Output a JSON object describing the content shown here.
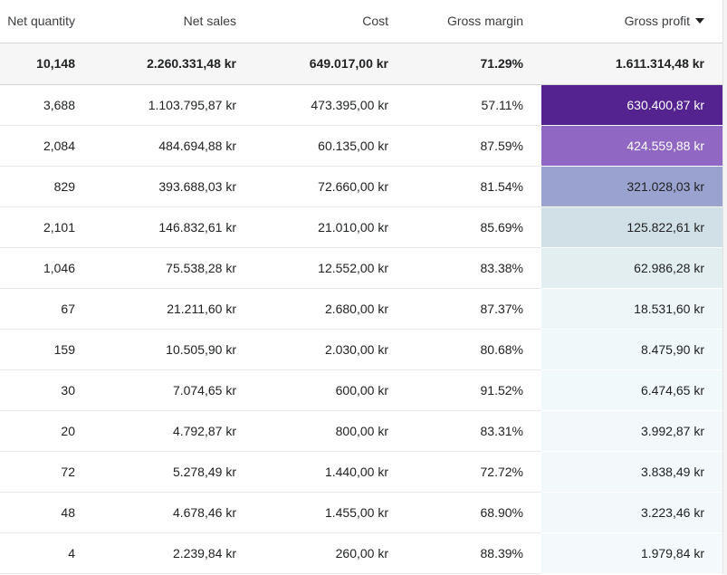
{
  "table": {
    "headers": {
      "net_quantity": "Net quantity",
      "net_sales": "Net sales",
      "cost": "Cost",
      "gross_margin": "Gross margin",
      "gross_profit": "Gross profit"
    },
    "sort_column": "Gross profit",
    "totals": {
      "net_quantity": "10,148",
      "net_sales": "2.260.331,48 kr",
      "cost": "649.017,00 kr",
      "gross_margin": "71.29%",
      "gross_profit": "1.611.314,48 kr"
    },
    "rows": [
      {
        "net_quantity": "3,688",
        "net_sales": "1.103.795,87 kr",
        "cost": "473.395,00 kr",
        "gross_margin": "57.11%",
        "gross_profit": "630.400,87 kr",
        "heat_color": "#54238f",
        "heat_text_color": "#ffffff"
      },
      {
        "net_quantity": "2,084",
        "net_sales": "484.694,88 kr",
        "cost": "60.135,00 kr",
        "gross_margin": "87.59%",
        "gross_profit": "424.559,88 kr",
        "heat_color": "#9067c3",
        "heat_text_color": "#ffffff"
      },
      {
        "net_quantity": "829",
        "net_sales": "393.688,03 kr",
        "cost": "72.660,00 kr",
        "gross_margin": "81.54%",
        "gross_profit": "321.028,03 kr",
        "heat_color": "#9aa3cf",
        "heat_text_color": "#202223"
      },
      {
        "net_quantity": "2,101",
        "net_sales": "146.832,61 kr",
        "cost": "21.010,00 kr",
        "gross_margin": "85.69%",
        "gross_profit": "125.822,61 kr",
        "heat_color": "#d1dfe6",
        "heat_text_color": "#202223"
      },
      {
        "net_quantity": "1,046",
        "net_sales": "75.538,28 kr",
        "cost": "12.552,00 kr",
        "gross_margin": "83.38%",
        "gross_profit": "62.986,28 kr",
        "heat_color": "#e3eef1",
        "heat_text_color": "#202223"
      },
      {
        "net_quantity": "67",
        "net_sales": "21.211,60 kr",
        "cost": "2.680,00 kr",
        "gross_margin": "87.37%",
        "gross_profit": "18.531,60 kr",
        "heat_color": "#eef6f8",
        "heat_text_color": "#202223"
      },
      {
        "net_quantity": "159",
        "net_sales": "10.505,90 kr",
        "cost": "2.030,00 kr",
        "gross_margin": "80.68%",
        "gross_profit": "8.475,90 kr",
        "heat_color": "#f1f8fa",
        "heat_text_color": "#202223"
      },
      {
        "net_quantity": "30",
        "net_sales": "7.074,65 kr",
        "cost": "600,00 kr",
        "gross_margin": "91.52%",
        "gross_profit": "6.474,65 kr",
        "heat_color": "#f2f9fa",
        "heat_text_color": "#202223"
      },
      {
        "net_quantity": "20",
        "net_sales": "4.792,87 kr",
        "cost": "800,00 kr",
        "gross_margin": "83.31%",
        "gross_profit": "3.992,87 kr",
        "heat_color": "#f3f9fb",
        "heat_text_color": "#202223"
      },
      {
        "net_quantity": "72",
        "net_sales": "5.278,49 kr",
        "cost": "1.440,00 kr",
        "gross_margin": "72.72%",
        "gross_profit": "3.838,49 kr",
        "heat_color": "#f3f9fb",
        "heat_text_color": "#202223"
      },
      {
        "net_quantity": "48",
        "net_sales": "4.678,46 kr",
        "cost": "1.455,00 kr",
        "gross_margin": "68.90%",
        "gross_profit": "3.223,46 kr",
        "heat_color": "#f3f9fb",
        "heat_text_color": "#202223"
      },
      {
        "net_quantity": "4",
        "net_sales": "2.239,84 kr",
        "cost": "260,00 kr",
        "gross_margin": "88.39%",
        "gross_profit": "1.979,84 kr",
        "heat_color": "#f4fafb",
        "heat_text_color": "#202223"
      }
    ]
  }
}
